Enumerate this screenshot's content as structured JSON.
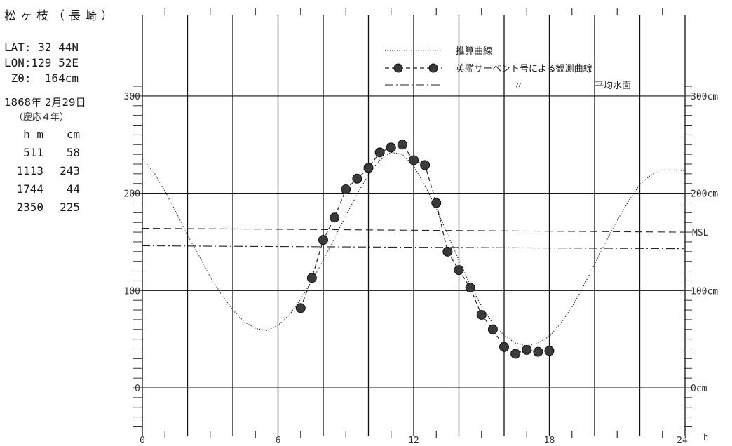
{
  "station": "松ヶ枝（長崎）",
  "position": {
    "lat": "LAT: 32 44N",
    "lon": "LON:129 52E",
    "z0": " Z0:  164cm"
  },
  "date": "1868年 2月29日",
  "era": "（慶応４年）",
  "tide_table": {
    "headers": [
      "h m",
      "cm"
    ],
    "rows": [
      [
        "511",
        "58"
      ],
      [
        "1113",
        "243"
      ],
      [
        "1744",
        "44"
      ],
      [
        "2350",
        "225"
      ]
    ]
  },
  "legend": {
    "items": [
      "推算曲線",
      "英艦サーペント号による観測曲線",
      "平均水面"
    ],
    "ditto": "〃"
  },
  "chart_data": {
    "type": "line",
    "x_unit": "h",
    "xlim": [
      0,
      24
    ],
    "ylim": [
      -50,
      310
    ],
    "x_ticks": [
      0,
      6,
      12,
      18,
      24
    ],
    "x_tick_labels": [
      "0",
      "6",
      "12",
      "18",
      "24"
    ],
    "y_ticks_left": [
      0,
      100,
      200,
      300
    ],
    "y_tick_labels_left": [
      "0",
      "100",
      "200",
      "300"
    ],
    "y_tick_labels_right": [
      "0cm",
      "100cm",
      "200cm",
      "300cm"
    ],
    "msl_label": "MSL",
    "grid": true,
    "series": [
      {
        "name": "推算曲線",
        "style": "dotted",
        "x": [
          0,
          0.5,
          1,
          1.5,
          2,
          2.5,
          3,
          3.5,
          4,
          4.5,
          5,
          5.5,
          6,
          6.5,
          7,
          7.5,
          8,
          8.5,
          9,
          9.5,
          10,
          10.5,
          11,
          11.5,
          12,
          12.5,
          13,
          13.5,
          14,
          14.5,
          15,
          15.5,
          16,
          16.5,
          17,
          17.5,
          18,
          18.5,
          19,
          19.5,
          20,
          20.5,
          21,
          21.5,
          22,
          22.5,
          23,
          23.5,
          24
        ],
        "values": [
          235,
          222,
          202,
          180,
          157,
          136,
          114,
          96,
          80,
          68,
          61,
          59,
          64,
          75,
          91,
          110,
          131,
          154,
          177,
          199,
          219,
          234,
          242,
          240,
          228,
          208,
          184,
          158,
          131,
          106,
          84,
          66,
          54,
          46,
          43,
          46,
          53,
          66,
          83,
          104,
          127,
          150,
          172,
          192,
          209,
          219,
          224,
          224,
          223
        ]
      },
      {
        "name": "英艦サーペント号による観測曲線",
        "style": "dashed-markers",
        "x": [
          7,
          7.5,
          8,
          8.5,
          9,
          9.5,
          10,
          10.5,
          11,
          11.5,
          12,
          12.5,
          13,
          13.5,
          14,
          14.5,
          15,
          15.5,
          16,
          16.5,
          17,
          17.5,
          18
        ],
        "values": [
          82,
          113,
          152,
          175,
          204,
          215,
          226,
          242,
          247,
          250,
          234,
          229,
          190,
          140,
          121,
          103,
          75,
          60,
          42,
          35,
          39,
          37,
          38
        ]
      },
      {
        "name": "",
        "style": "dashed",
        "x": [
          0,
          24
        ],
        "values": [
          164,
          160
        ]
      },
      {
        "name": "平均水面",
        "style": "dash-dot",
        "x": [
          0,
          24
        ],
        "values": [
          146,
          143
        ]
      }
    ]
  }
}
